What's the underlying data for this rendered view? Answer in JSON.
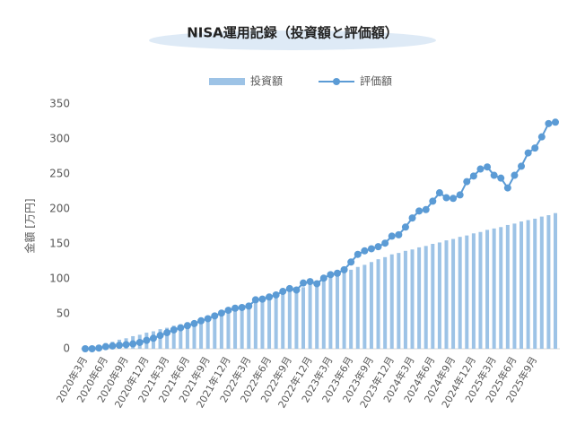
{
  "chart_data": {
    "type": "bar-line",
    "title": "NISA運用記録（投資額と評価額）",
    "y_label": "金額 [万円]",
    "categories": [
      "2020年3月",
      null,
      null,
      "2020年6月",
      null,
      null,
      "2020年9月",
      null,
      null,
      "2020年12月",
      null,
      null,
      "2021年3月",
      null,
      null,
      "2021年6月",
      null,
      null,
      "2021年9月",
      null,
      null,
      "2021年12月",
      null,
      null,
      "2022年3月",
      null,
      null,
      "2022年6月",
      null,
      null,
      "2022年9月",
      null,
      null,
      "2022年12月",
      null,
      null,
      "2023年3月",
      null,
      null,
      "2023年6月",
      null,
      null,
      "2023年9月",
      null,
      null,
      "2023年12月",
      null,
      null,
      "2024年3月",
      null,
      null,
      "2024年6月",
      null,
      null,
      "2024年9月",
      null,
      null,
      "2024年12月",
      null,
      null,
      "2025年3月",
      null,
      null,
      "2025年6月",
      null,
      null,
      "2025年9月",
      null,
      null,
      null
    ],
    "series": [
      {
        "name": "投資額",
        "type": "bar",
        "color": "#9dc3e6",
        "values": [
          0,
          3,
          5,
          8,
          10,
          13,
          15,
          18,
          20,
          23,
          25,
          28,
          30,
          33,
          35,
          38,
          40,
          43,
          45,
          48,
          50,
          53,
          56,
          59,
          62,
          66,
          69,
          72,
          75,
          78,
          82,
          85,
          88,
          91,
          95,
          98,
          102,
          106,
          109,
          113,
          117,
          120,
          124,
          128,
          131,
          135,
          137,
          140,
          142,
          145,
          147,
          150,
          152,
          155,
          157,
          160,
          162,
          165,
          167,
          170,
          172,
          174,
          177,
          179,
          182,
          184,
          186,
          189,
          191,
          194
        ]
      },
      {
        "name": "評価額",
        "type": "line",
        "color": "#5b9bd5",
        "values": [
          0,
          0,
          1,
          3,
          4,
          5,
          6,
          7,
          9,
          12,
          15,
          19,
          23,
          27,
          30,
          33,
          36,
          40,
          43,
          47,
          51,
          55,
          58,
          59,
          61,
          70,
          71,
          74,
          77,
          82,
          86,
          84,
          94,
          96,
          93,
          101,
          106,
          108,
          113,
          124,
          135,
          140,
          143,
          146,
          151,
          161,
          163,
          174,
          187,
          197,
          199,
          211,
          223,
          216,
          215,
          220,
          239,
          247,
          257,
          260,
          248,
          244,
          230,
          248,
          261,
          280,
          287,
          303,
          322,
          324
        ]
      }
    ],
    "ylim": [
      0,
      350
    ],
    "yticks": [
      0,
      50,
      100,
      150,
      200,
      250,
      300,
      350
    ],
    "grid": false,
    "legend": "top"
  }
}
